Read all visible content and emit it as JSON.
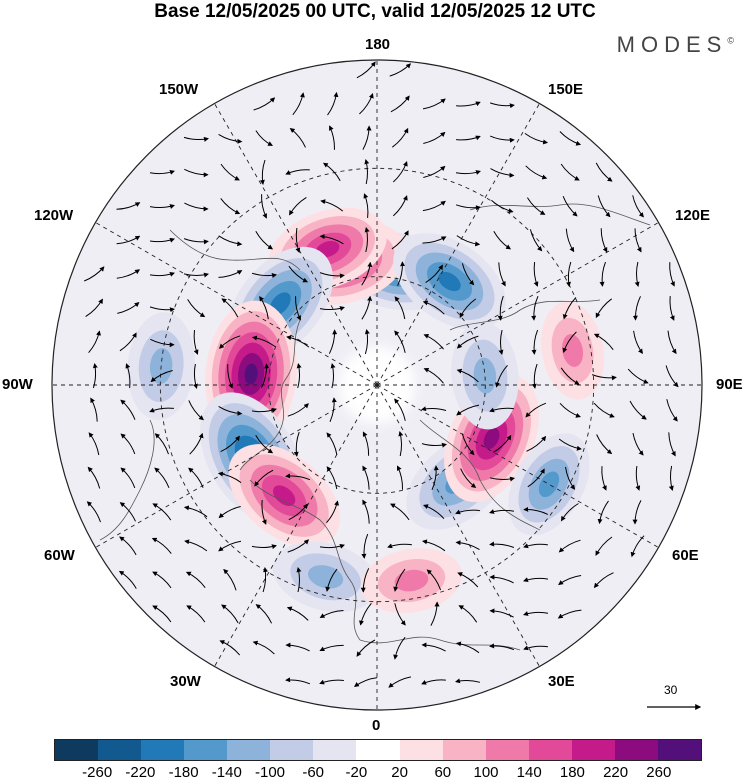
{
  "title": "Base 12/05/2025 00 UTC, valid 12/05/2025 12 UTC",
  "brand": "MODES",
  "brand_mark": "©",
  "longitude_labels": {
    "top": "180",
    "bottom": "0",
    "left": "90W",
    "right": "90E",
    "upper_left_150": "150W",
    "upper_right_150": "150E",
    "upper_left_120": "120W",
    "upper_right_120": "120E",
    "lower_left_60": "60W",
    "lower_right_60": "60E",
    "lower_left_30": "30W",
    "lower_right_30": "30E"
  },
  "wind_scale": {
    "label": "30"
  },
  "colorbar": {
    "colors": [
      "#0d3a5e",
      "#11598f",
      "#2179b8",
      "#5499cc",
      "#8eb3db",
      "#c3cce6",
      "#e5e4f1",
      "#ffffff",
      "#fde0e3",
      "#f8b3c4",
      "#ef7aa9",
      "#e24a99",
      "#c51b8a",
      "#8c0b7e",
      "#54107a"
    ],
    "tick_labels": [
      "-260",
      "-220",
      "-180",
      "-140",
      "-100",
      "-60",
      "-20",
      "20",
      "60",
      "100",
      "140",
      "180",
      "220",
      "260"
    ]
  },
  "anomaly_centers": [
    {
      "lon": 170,
      "lat": 58,
      "value": -160
    },
    {
      "lon": -165,
      "lat": 55,
      "value": 180
    },
    {
      "lon": 145,
      "lat": 55,
      "value": -170
    },
    {
      "lon": -160,
      "lat": 50,
      "value": 160
    },
    {
      "lon": -130,
      "lat": 55,
      "value": -190
    },
    {
      "lon": -95,
      "lat": 55,
      "value": 240
    },
    {
      "lon": -95,
      "lat": 30,
      "value": -110
    },
    {
      "lon": -60,
      "lat": 50,
      "value": -220
    },
    {
      "lon": -40,
      "lat": 50,
      "value": 180
    },
    {
      "lon": -15,
      "lat": 35,
      "value": -110
    },
    {
      "lon": 40,
      "lat": 55,
      "value": -150
    },
    {
      "lon": 65,
      "lat": 55,
      "value": 200
    },
    {
      "lon": 95,
      "lat": 60,
      "value": -110
    },
    {
      "lon": 60,
      "lat": 35,
      "value": -120
    },
    {
      "lon": 100,
      "lat": 35,
      "value": 80
    },
    {
      "lon": 10,
      "lat": 35,
      "value": 90
    }
  ]
}
